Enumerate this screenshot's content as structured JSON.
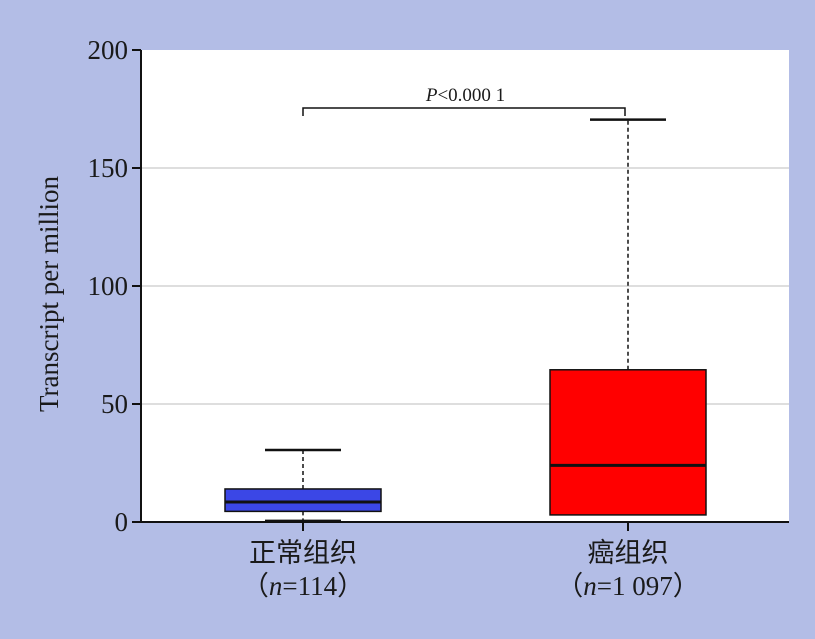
{
  "chart_data": {
    "type": "box",
    "ylabel": "Transcript per million",
    "ylim": [
      0,
      200
    ],
    "yticks": [
      0,
      50,
      100,
      150,
      200
    ],
    "grid": true,
    "categories": [
      {
        "label": "正常组织",
        "n_text": "n=114",
        "n_open": "（",
        "n_italic": "n",
        "n_rest": "=114",
        "n_close": "）",
        "color": "#3b47e6",
        "whisker_low": 0.5,
        "q1": 4.5,
        "median": 8.5,
        "q3": 14.0,
        "whisker_high": 30.5
      },
      {
        "label": "癌组织",
        "n_text": "n=1 097",
        "n_open": "（",
        "n_italic": "n",
        "n_rest": "=1 097",
        "n_close": "）",
        "color": "#ff0000",
        "whisker_low": 3.0,
        "q1": 3.0,
        "median": 24.0,
        "q3": 64.5,
        "whisker_high": 170.5
      }
    ],
    "annotation": {
      "text_italic": "P",
      "text_rest": "<0.000 1",
      "y": 175
    }
  }
}
